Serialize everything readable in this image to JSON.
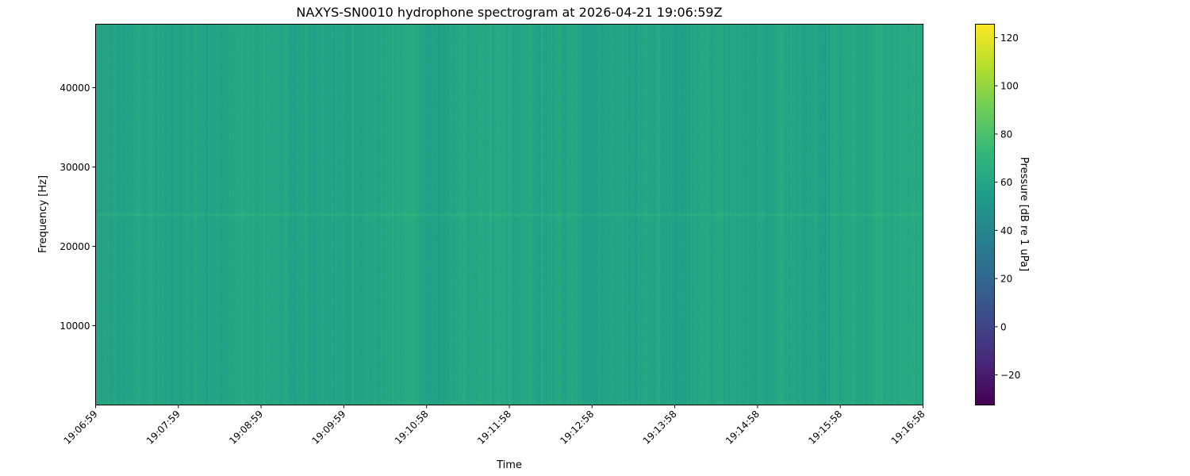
{
  "chart_data": {
    "type": "heatmap",
    "title": "NAXYS-SN0010 hydrophone spectrogram at 2026-04-21 19:06:59Z",
    "xlabel": "Time",
    "ylabel": "Frequency [Hz]",
    "x_ticks": [
      "19:06:59",
      "19:07:59",
      "19:08:59",
      "19:09:59",
      "19:10:58",
      "19:11:58",
      "19:12:58",
      "19:13:58",
      "19:14:58",
      "19:15:58",
      "19:16:58"
    ],
    "y_ticks": [
      10000,
      20000,
      30000,
      40000
    ],
    "ylim": [
      0,
      48000
    ],
    "colormap": "viridis",
    "colorbar": {
      "label": "Pressure [dB re 1 uPa]",
      "ticks": [
        -20,
        0,
        20,
        40,
        60,
        80,
        100,
        120
      ],
      "clim": [
        -32.5,
        125.6
      ]
    },
    "typical_level_db": 60,
    "features": {
      "tonal_line_hz": 24000,
      "tonal_line_level_db": 72
    },
    "grid": false
  }
}
